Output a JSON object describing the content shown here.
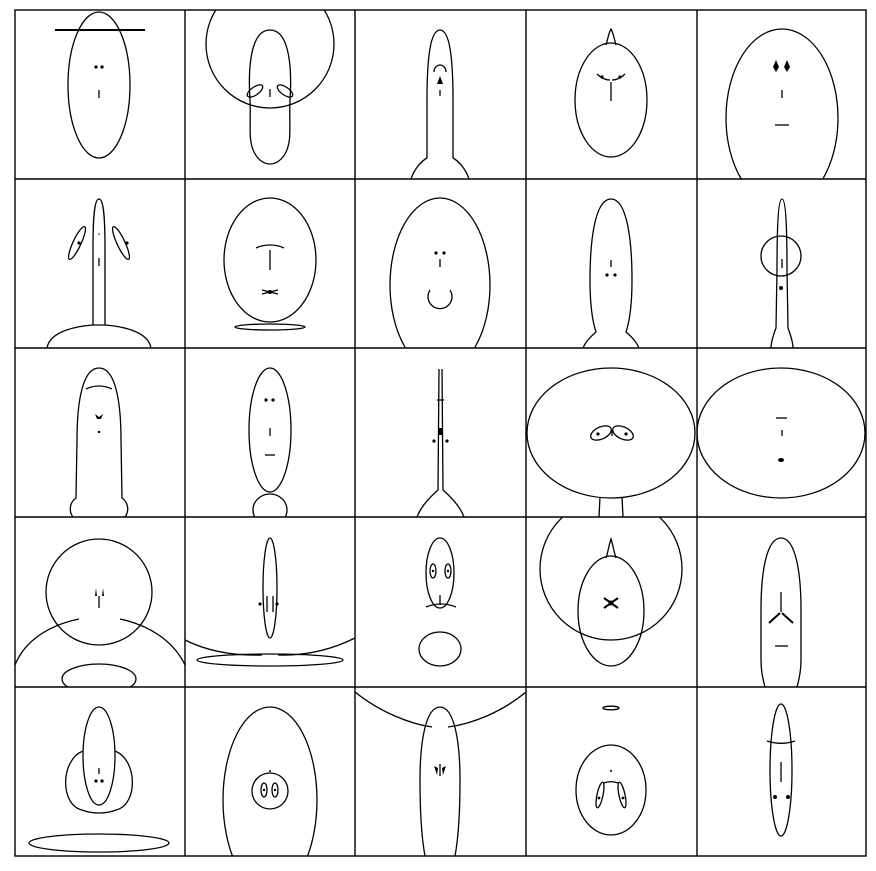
{
  "grid": {
    "rows": 5,
    "columns": 5,
    "line_color": "#000000",
    "background": "#ffffff"
  },
  "cells": [
    {
      "row": 1,
      "col": 1,
      "icon": "face-doodle-icon"
    },
    {
      "row": 1,
      "col": 2,
      "icon": "face-doodle-icon"
    },
    {
      "row": 1,
      "col": 3,
      "icon": "face-doodle-icon"
    },
    {
      "row": 1,
      "col": 4,
      "icon": "face-doodle-icon"
    },
    {
      "row": 1,
      "col": 5,
      "icon": "face-doodle-icon"
    },
    {
      "row": 2,
      "col": 1,
      "icon": "face-doodle-icon"
    },
    {
      "row": 2,
      "col": 2,
      "icon": "face-doodle-icon"
    },
    {
      "row": 2,
      "col": 3,
      "icon": "face-doodle-icon"
    },
    {
      "row": 2,
      "col": 4,
      "icon": "face-doodle-icon"
    },
    {
      "row": 2,
      "col": 5,
      "icon": "face-doodle-icon"
    },
    {
      "row": 3,
      "col": 1,
      "icon": "face-doodle-icon"
    },
    {
      "row": 3,
      "col": 2,
      "icon": "face-doodle-icon"
    },
    {
      "row": 3,
      "col": 3,
      "icon": "face-doodle-icon"
    },
    {
      "row": 3,
      "col": 4,
      "icon": "face-doodle-icon"
    },
    {
      "row": 3,
      "col": 5,
      "icon": "face-doodle-icon"
    },
    {
      "row": 4,
      "col": 1,
      "icon": "face-doodle-icon"
    },
    {
      "row": 4,
      "col": 2,
      "icon": "face-doodle-icon"
    },
    {
      "row": 4,
      "col": 3,
      "icon": "face-doodle-icon"
    },
    {
      "row": 4,
      "col": 4,
      "icon": "face-doodle-icon"
    },
    {
      "row": 4,
      "col": 5,
      "icon": "face-doodle-icon"
    },
    {
      "row": 5,
      "col": 1,
      "icon": "face-doodle-icon"
    },
    {
      "row": 5,
      "col": 2,
      "icon": "face-doodle-icon"
    },
    {
      "row": 5,
      "col": 3,
      "icon": "face-doodle-icon"
    },
    {
      "row": 5,
      "col": 4,
      "icon": "face-doodle-icon"
    },
    {
      "row": 5,
      "col": 5,
      "icon": "face-doodle-icon"
    }
  ]
}
